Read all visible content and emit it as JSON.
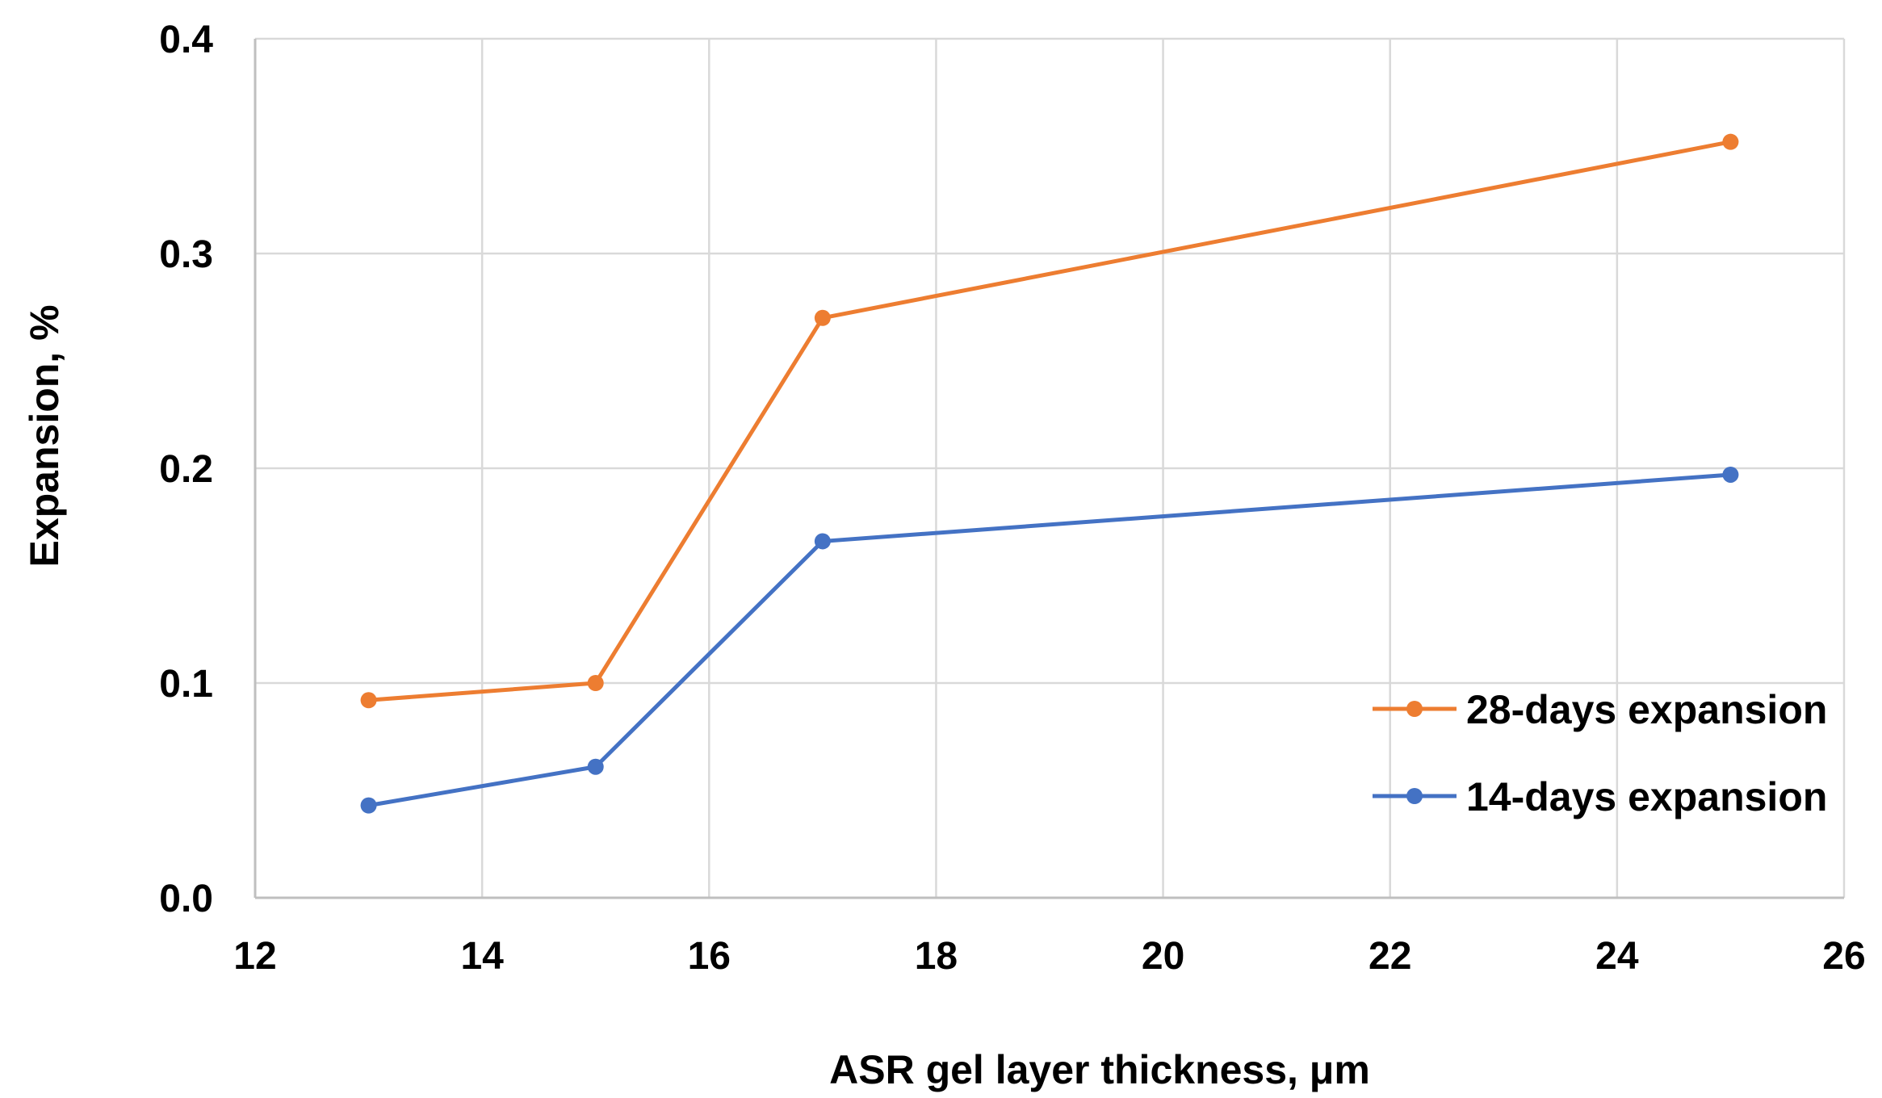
{
  "chart_data": {
    "type": "line",
    "title": "",
    "xlabel": "ASR gel layer thickness, μm",
    "ylabel": "Expansion, %",
    "xlim": [
      12,
      26
    ],
    "ylim": [
      0.0,
      0.4
    ],
    "x_ticks": [
      "12",
      "14",
      "16",
      "18",
      "20",
      "22",
      "24",
      "26"
    ],
    "y_ticks": [
      "0.0",
      "0.1",
      "0.2",
      "0.3",
      "0.4"
    ],
    "x": [
      13,
      15,
      17,
      25
    ],
    "series": [
      {
        "name": "28-days expansion",
        "color": "#ed7d31",
        "values": [
          0.092,
          0.1,
          0.27,
          0.352
        ]
      },
      {
        "name": "14-days expansion",
        "color": "#4472c4",
        "values": [
          0.043,
          0.061,
          0.166,
          0.197
        ]
      }
    ],
    "grid": true,
    "legend_position": "bottom-right",
    "marker": "circle"
  }
}
